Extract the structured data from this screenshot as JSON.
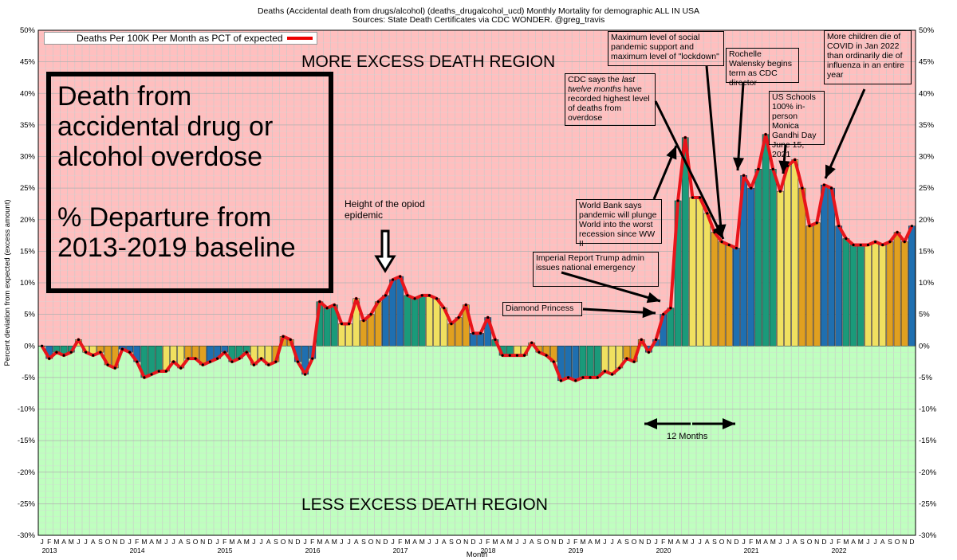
{
  "title_lines": [
    "Deaths (Accidental death from drugs/alcohol) (deaths_drugalcohol_ucd) Monthly Mortality for demographic ALL IN USA",
    "Sources: State Death Certificates via CDC WONDER.   @greg_travis"
  ],
  "legend_label": "Deaths Per 100K Per Month as PCT of expected",
  "big_label_lines": [
    "Death from",
    "accidental drug or",
    "alcohol overdose",
    "",
    "% Departure from",
    "2013-2019 baseline"
  ],
  "region_top": "MORE EXCESS DEATH REGION",
  "region_bottom": "LESS EXCESS DEATH REGION",
  "annotations": {
    "opioid": "Height of the opiod epidemic",
    "imperial": "Imperial Report Trump admin issues national emergency",
    "diamond": "Diamond Princess",
    "worldbank": "World Bank says pandemic will plunge World into the worst recession since WW II",
    "cdc_pre": "CDC says the ",
    "cdc_em": "last twelve months",
    "cdc_post": " have recorded highest level of deaths from overdose",
    "lockdown": "Maximum level of social pandemic support and maximum level of \"lockdown\"",
    "walensky": "Rochelle Walensky begins term as CDC director",
    "schools": "US Schools 100% in-person Monica Gandhi Day June 15, 2021",
    "children": "More children die of COVID  in Jan 2022 than ordinarily die of influenza in an entire year",
    "twelve": "12 Months"
  },
  "colors": {
    "positive_bg": "#ffbfbf",
    "negative_bg": "#bfffbf",
    "line": "#e8151b",
    "winter": "#1f6fb0",
    "spring": "#1a9a7a",
    "summer": "#f0e060",
    "autumn": "#e0a020"
  },
  "chart_data": {
    "type": "bar",
    "title": "Deaths (Accidental death from drugs/alcohol) (deaths_drugalcohol_ucd) Monthly Mortality for demographic ALL IN USA",
    "ylabel": "Percent deviation from expected (excess amount)",
    "xlabel": "Month",
    "ylim": [
      -30,
      50
    ],
    "ytick_step": 5,
    "grid": true,
    "legend_position": "top-left",
    "start": "2013-01",
    "month_letters": [
      "J",
      "F",
      "M",
      "A",
      "M",
      "J",
      "J",
      "A",
      "S",
      "O",
      "N",
      "D"
    ],
    "year_labels": [
      "2013",
      "2014",
      "2015",
      "2016",
      "2017",
      "2018",
      "2019",
      "2020",
      "2021",
      "2022"
    ],
    "series": [
      {
        "name": "Deaths Per 100K Per Month as PCT of expected",
        "values": [
          0,
          -2,
          -1,
          -1.5,
          -1,
          1,
          -1,
          -1.5,
          -1,
          -3,
          -3.5,
          -0.5,
          -1,
          -2.5,
          -5,
          -4.5,
          -4,
          -4,
          -2.5,
          -3.5,
          -2,
          -2,
          -3,
          -2.5,
          -2,
          -1,
          -2.5,
          -2,
          -1,
          -3,
          -2,
          -3,
          -2.5,
          1.5,
          1,
          -2.5,
          -4.5,
          -2,
          7,
          6,
          6.5,
          3.5,
          3.5,
          7.5,
          4,
          5,
          7,
          8,
          10.5,
          11,
          8,
          7.5,
          8,
          8,
          7.5,
          6,
          3.5,
          4.5,
          6.5,
          2,
          2,
          4.5,
          1,
          -1.5,
          -1.5,
          -1.5,
          -1.5,
          0.5,
          -1,
          -1.5,
          -2.5,
          -5.5,
          -5,
          -5.5,
          -5,
          -5,
          -5,
          -4,
          -4.5,
          -3.5,
          -2,
          -2.5,
          1,
          -1,
          1,
          5,
          6,
          23,
          33,
          23.5,
          23.5,
          21,
          18,
          16.5,
          16,
          15.5,
          27,
          25,
          28,
          33.5,
          28,
          24.5,
          28.5,
          29.5,
          25,
          19,
          19.5,
          25.5,
          25,
          19,
          17,
          16,
          16,
          16,
          16.5,
          16,
          16.5,
          18,
          16.5,
          19
        ]
      }
    ]
  }
}
